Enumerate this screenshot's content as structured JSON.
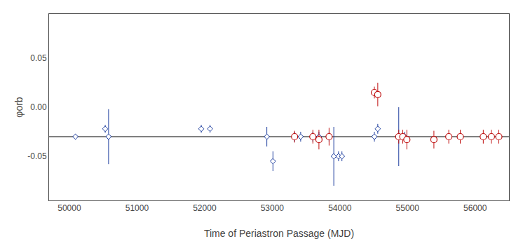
{
  "chart_data": {
    "type": "scatter",
    "xlabel": "Time of Periastron Passage (MJD)",
    "ylabel": "φorb",
    "xlim": [
      49700,
      56500
    ],
    "ylim": [
      -0.095,
      0.095
    ],
    "xticks": [
      50000,
      51000,
      52000,
      53000,
      54000,
      55000,
      56000
    ],
    "yticks": [
      -0.05,
      {
        "value": 0,
        "label": "0.00"
      },
      0.05
    ],
    "grid": false,
    "reference_line": {
      "y": -0.03,
      "color": "#555555"
    },
    "series": [
      {
        "color": "#1f3f9f",
        "marker": "diamond",
        "x": [
          50090,
          50530,
          50580,
          51950,
          52080,
          52920,
          53010,
          53330,
          53420,
          53600,
          53690,
          53840,
          53910,
          53980,
          54030,
          54510,
          54560,
          54870,
          54960
        ],
        "values": [
          -0.03,
          -0.022,
          -0.03,
          -0.022,
          -0.022,
          -0.03,
          -0.055,
          -0.03,
          -0.03,
          -0.03,
          -0.03,
          -0.03,
          -0.05,
          -0.05,
          -0.05,
          -0.03,
          -0.022,
          -0.03,
          -0.03
        ],
        "error_lo": [
          0.003,
          0.004,
          0.028,
          0.004,
          0.004,
          0.01,
          0.01,
          0.005,
          0.005,
          0.005,
          0.005,
          0.005,
          0.03,
          0.005,
          0.005,
          0.005,
          0.005,
          0.03,
          0.005
        ],
        "error_hi": [
          0.003,
          0.004,
          0.028,
          0.004,
          0.004,
          0.01,
          0.01,
          0.005,
          0.005,
          0.005,
          0.005,
          0.005,
          0.03,
          0.005,
          0.005,
          0.005,
          0.005,
          0.03,
          0.005
        ]
      },
      {
        "color": "#bf1010",
        "marker": "circle",
        "x": [
          53330,
          53600,
          53690,
          53840,
          54510,
          54560,
          54870,
          54930,
          54990,
          55390,
          55610,
          55780,
          56120,
          56240,
          56350
        ],
        "values": [
          -0.03,
          -0.03,
          -0.033,
          -0.03,
          0.015,
          0.013,
          -0.03,
          -0.03,
          -0.033,
          -0.033,
          -0.03,
          -0.03,
          -0.03,
          -0.03,
          -0.03
        ],
        "error_lo": [
          0.006,
          0.007,
          0.01,
          0.009,
          0.006,
          0.012,
          0.007,
          0.007,
          0.01,
          0.009,
          0.007,
          0.007,
          0.007,
          0.007,
          0.007
        ],
        "error_hi": [
          0.006,
          0.007,
          0.01,
          0.009,
          0.006,
          0.012,
          0.007,
          0.007,
          0.01,
          0.009,
          0.007,
          0.007,
          0.007,
          0.007,
          0.007
        ]
      }
    ]
  }
}
